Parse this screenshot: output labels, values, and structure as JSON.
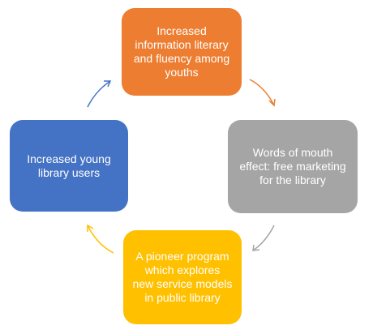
{
  "cycle": {
    "steps": [
      {
        "text": "Increased\ninformation literary\nand fluency among\nyouths",
        "color": "#ED7D31"
      },
      {
        "text": "Words of  mouth\neffect: free marketing\nfor the library",
        "color": "#A5A5A5"
      },
      {
        "text": "A pioneer program\nwhich explores\nnew service models\nin public library",
        "color": "#FFC000"
      },
      {
        "text": "Increased young\nlibrary users",
        "color": "#4472C4"
      }
    ]
  }
}
